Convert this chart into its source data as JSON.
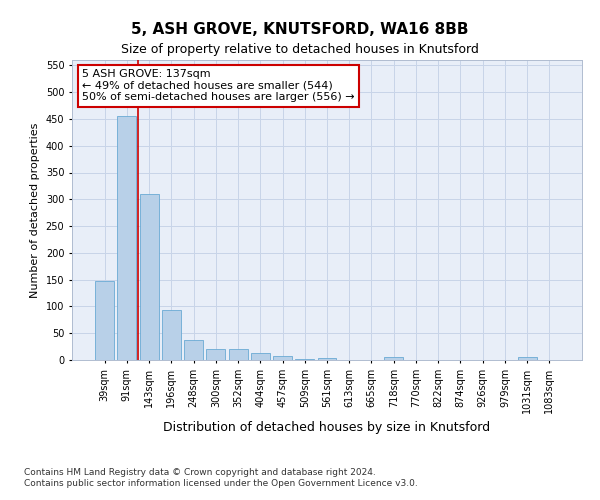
{
  "title": "5, ASH GROVE, KNUTSFORD, WA16 8BB",
  "subtitle": "Size of property relative to detached houses in Knutsford",
  "xlabel": "Distribution of detached houses by size in Knutsford",
  "ylabel": "Number of detached properties",
  "categories": [
    "39sqm",
    "91sqm",
    "143sqm",
    "196sqm",
    "248sqm",
    "300sqm",
    "352sqm",
    "404sqm",
    "457sqm",
    "509sqm",
    "561sqm",
    "613sqm",
    "665sqm",
    "718sqm",
    "770sqm",
    "822sqm",
    "874sqm",
    "926sqm",
    "979sqm",
    "1031sqm",
    "1083sqm"
  ],
  "values": [
    148,
    455,
    310,
    93,
    38,
    21,
    21,
    13,
    7,
    2,
    3,
    0,
    0,
    6,
    0,
    0,
    0,
    0,
    0,
    5,
    0
  ],
  "bar_color": "#b8d0e8",
  "bar_edge_color": "#6aaad4",
  "bar_width": 0.85,
  "ylim": [
    0,
    560
  ],
  "yticks": [
    0,
    50,
    100,
    150,
    200,
    250,
    300,
    350,
    400,
    450,
    500,
    550
  ],
  "red_line_index": 2,
  "annotation_title": "5 ASH GROVE: 137sqm",
  "annotation_line1": "← 49% of detached houses are smaller (544)",
  "annotation_line2": "50% of semi-detached houses are larger (556) →",
  "annotation_box_color": "#ffffff",
  "annotation_box_edge": "#cc0000",
  "red_line_color": "#cc0000",
  "grid_color": "#c8d4e8",
  "bg_color": "#e8eef8",
  "footer_line1": "Contains HM Land Registry data © Crown copyright and database right 2024.",
  "footer_line2": "Contains public sector information licensed under the Open Government Licence v3.0.",
  "title_fontsize": 11,
  "subtitle_fontsize": 9,
  "xlabel_fontsize": 9,
  "ylabel_fontsize": 8,
  "tick_fontsize": 7,
  "annotation_fontsize": 8,
  "footer_fontsize": 6.5
}
